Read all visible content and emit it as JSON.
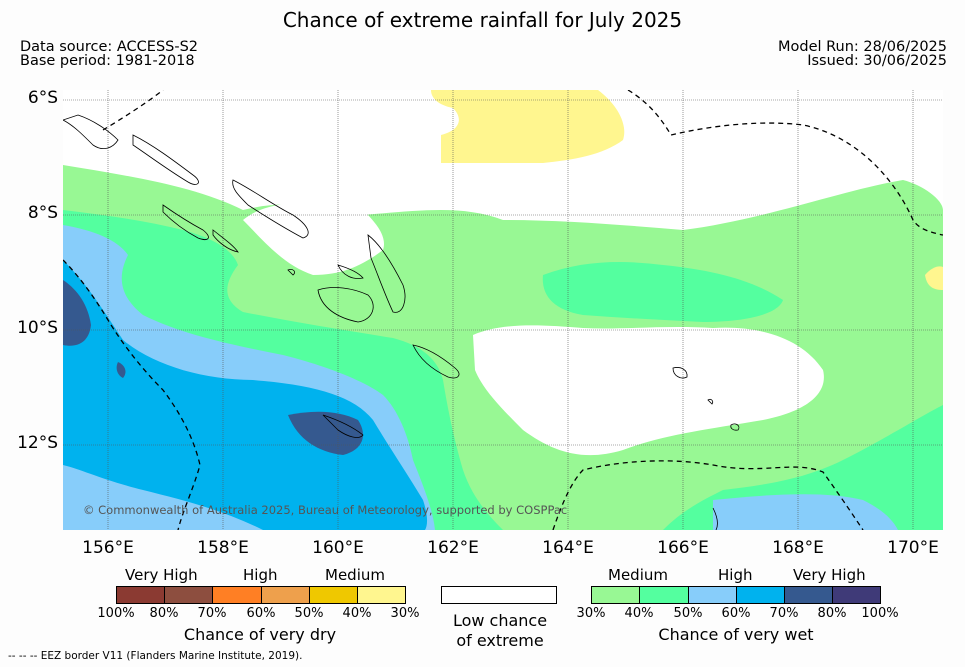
{
  "title": "Chance of extreme rainfall for July 2025",
  "source": {
    "line1": "Data source: ACCESS-S2",
    "line2": "Base period: 1981-2018"
  },
  "run": {
    "line1": "Model Run: 28/06/2025",
    "line2": "Issued: 30/06/2025"
  },
  "map": {
    "lat_labels": [
      "6°S",
      "8°S",
      "10°S",
      "12°S"
    ],
    "lon_labels": [
      "156°E",
      "158°E",
      "160°E",
      "162°E",
      "164°E",
      "166°E",
      "168°E",
      "170°E"
    ],
    "lat_range": [
      -13.5,
      -5.8
    ],
    "lon_range": [
      155.3,
      170.5
    ],
    "copyright": "© Commonwealth of Australia 2025, Bureau of Meteorology, supported by COSPPac"
  },
  "legend": {
    "dry": {
      "categories": [
        "Very High",
        "High",
        "Medium"
      ],
      "colors": [
        "#8b3a32",
        "#8d4e3f",
        "#ff7f24",
        "#eea04c",
        "#efc800",
        "#fff68f"
      ],
      "ticks": [
        "100%",
        "80%",
        "70%",
        "60%",
        "50%",
        "40%",
        "30%"
      ],
      "caption": "Chance of very dry"
    },
    "low": {
      "color": "#ffffff",
      "caption_line1": "Low chance",
      "caption_line2": "of extreme"
    },
    "wet": {
      "categories": [
        "Medium",
        "High",
        "Very High"
      ],
      "colors": [
        "#98f894",
        "#54ff9f",
        "#87cdfa",
        "#00b2ee",
        "#35598f",
        "#3f3a78"
      ],
      "ticks": [
        "30%",
        "40%",
        "50%",
        "60%",
        "70%",
        "80%",
        "100%"
      ],
      "caption": "Chance of very wet"
    }
  },
  "footer": "-- -- -- EEZ border V11 (Flanders Marine Institute, 2019)."
}
